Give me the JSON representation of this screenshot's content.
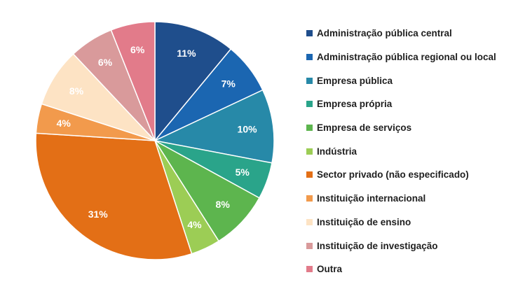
{
  "chart_data": {
    "type": "pie",
    "title": "",
    "legend_position": "right",
    "slices": [
      {
        "label": "Administração pública central",
        "value": 11,
        "display": "11%",
        "color": "#1f4e8c"
      },
      {
        "label": "Administração pública regional ou local",
        "value": 7,
        "display": "7%",
        "color": "#1b66b1"
      },
      {
        "label": "Empresa pública",
        "value": 10,
        "display": "10%",
        "color": "#2789a8"
      },
      {
        "label": "Empresa própria",
        "value": 5,
        "display": "5%",
        "color": "#2aa48a"
      },
      {
        "label": "Empresa de serviços",
        "value": 8,
        "display": "8%",
        "color": "#5db54e"
      },
      {
        "label": "Indústria",
        "value": 4,
        "display": "4%",
        "color": "#9ccd55"
      },
      {
        "label": "Sector privado (não especificado)",
        "value": 31,
        "display": "31%",
        "color": "#e36f16"
      },
      {
        "label": "Instituição internacional",
        "value": 4,
        "display": "4%",
        "color": "#f29a4c"
      },
      {
        "label": "Instituição de ensino",
        "value": 8,
        "display": "8%",
        "color": "#fde3c4"
      },
      {
        "label": "Instituição de investigação",
        "value": 6,
        "display": "6%",
        "color": "#d99a9b"
      },
      {
        "label": "Outra",
        "value": 6,
        "display": "6%",
        "color": "#e27b8a"
      }
    ]
  }
}
